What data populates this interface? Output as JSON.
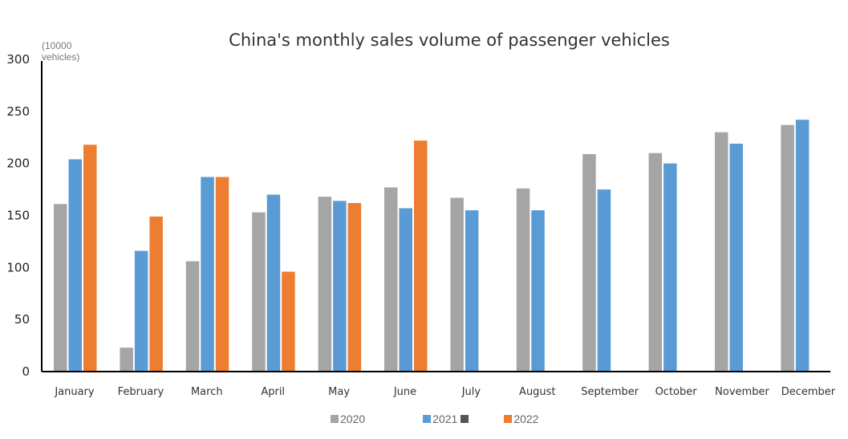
{
  "chart_data": {
    "type": "bar",
    "title": "China's monthly sales volume of passenger vehicles",
    "ylabel": "(10000 vehicles)",
    "xlabel": "",
    "ylim": [
      0,
      300
    ],
    "yticks": [
      0,
      50,
      100,
      150,
      200,
      250,
      300
    ],
    "grid": false,
    "legend_position": "bottom",
    "categories": [
      "January",
      "February",
      "March",
      "April",
      "May",
      "June",
      "July",
      "August",
      "September",
      "October",
      "November",
      "December"
    ],
    "series": [
      {
        "name": "2020",
        "color": "#a5a5a5",
        "values": [
          161,
          23,
          106,
          153,
          168,
          177,
          167,
          176,
          209,
          210,
          230,
          237
        ]
      },
      {
        "name": "2021",
        "color": "#5b9bd5",
        "values": [
          204,
          116,
          187,
          170,
          164,
          157,
          155,
          155,
          175,
          200,
          219,
          242
        ]
      },
      {
        "name": "2022",
        "color": "#ed7d31",
        "values": [
          218,
          149,
          187,
          96,
          162,
          222,
          null,
          null,
          null,
          null,
          null,
          null
        ]
      }
    ]
  }
}
